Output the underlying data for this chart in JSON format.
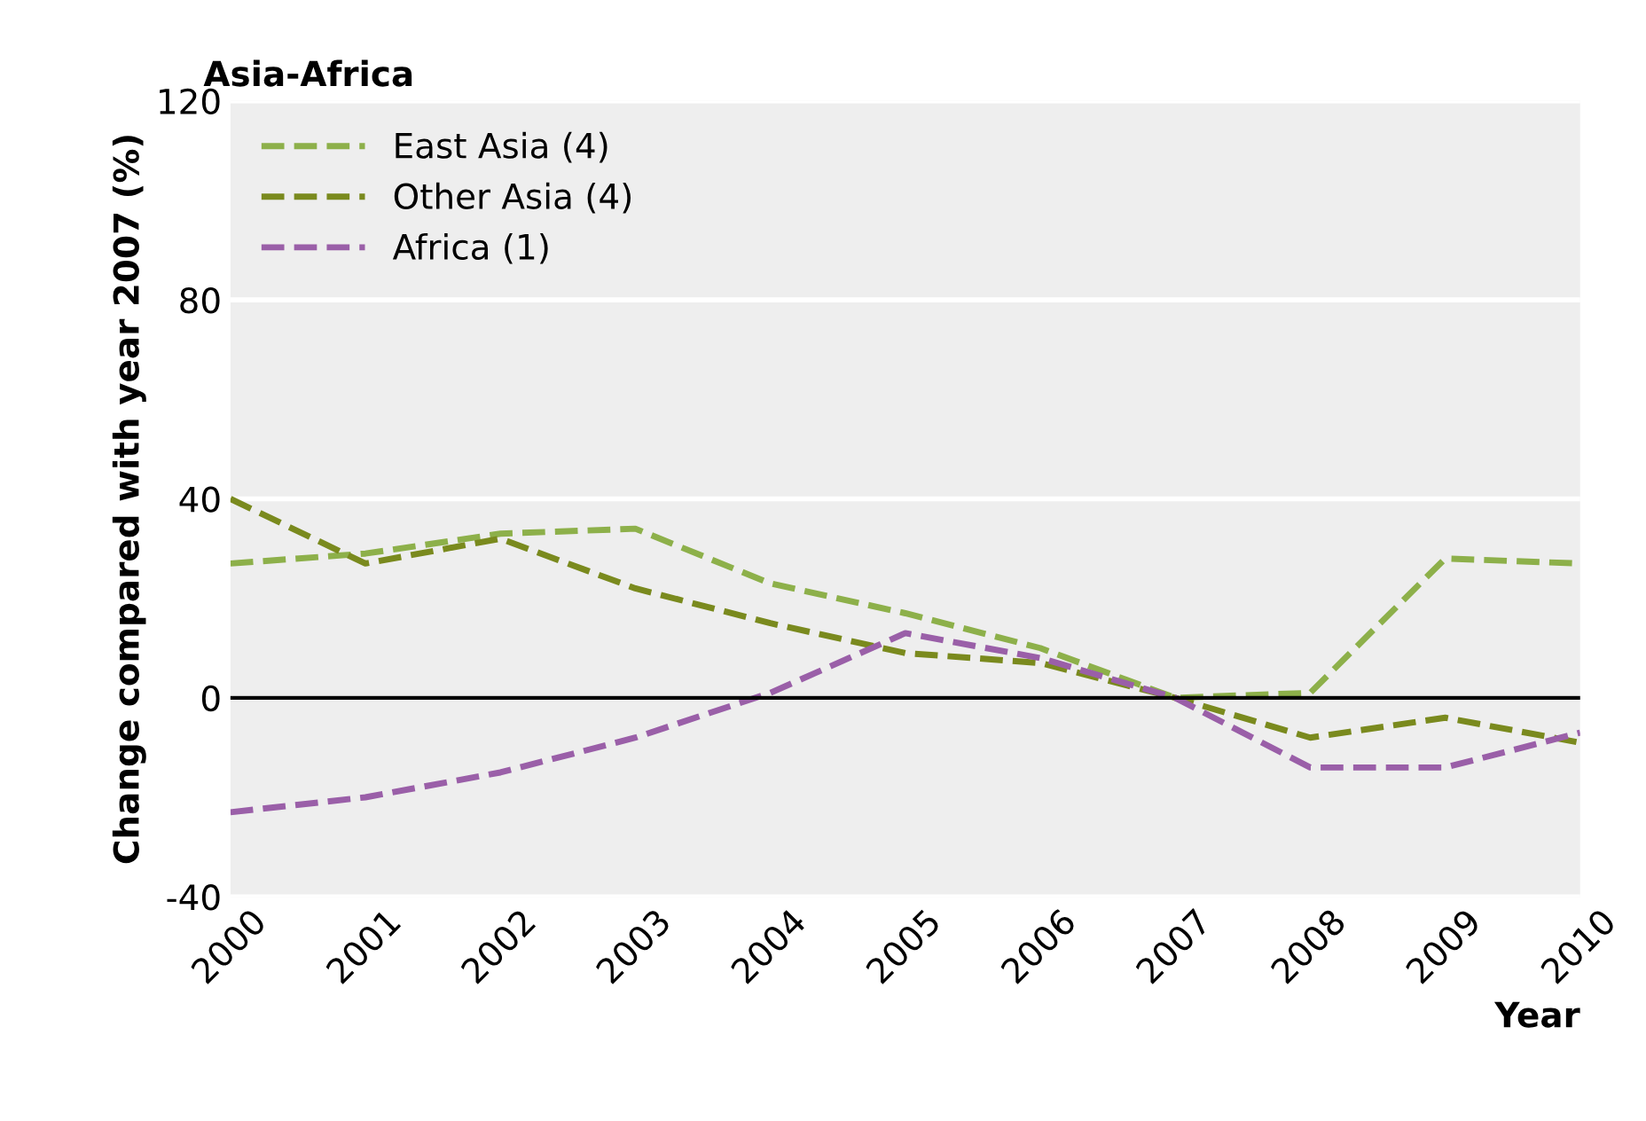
{
  "chart_data": {
    "type": "line",
    "title": "Asia-Africa",
    "xlabel": "Year",
    "ylabel": "Change compared with year 2007 (%)",
    "x": [
      2000,
      2001,
      2002,
      2003,
      2004,
      2005,
      2006,
      2007,
      2008,
      2009,
      2010
    ],
    "series": [
      {
        "name": "East Asia (4)",
        "color": "#8db04a",
        "line_style": "dashed",
        "values": [
          27,
          29,
          33,
          34,
          23,
          17,
          10,
          0,
          1,
          28,
          27
        ]
      },
      {
        "name": "Other Asia (4)",
        "color": "#7a8a1e",
        "line_style": "dashed",
        "values": [
          40,
          27,
          32,
          22,
          15,
          9,
          7,
          0,
          -8,
          -4,
          -9
        ]
      },
      {
        "name": "Africa (1)",
        "color": "#9a5fa8",
        "line_style": "dashed",
        "values": [
          -23,
          -20,
          -15,
          -8,
          1,
          13,
          8,
          0,
          -14,
          -14,
          -7
        ]
      }
    ],
    "xlim": [
      2000,
      2010
    ],
    "xticks": [
      2000,
      2001,
      2002,
      2003,
      2004,
      2005,
      2006,
      2007,
      2008,
      2009,
      2010
    ],
    "ylim": [
      -40,
      120
    ],
    "yticks": [
      -40,
      0,
      40,
      80,
      120
    ],
    "ref_lines": [
      {
        "axis": "y",
        "value": 0,
        "color": "#000000",
        "line_style": "solid"
      }
    ],
    "grid": "y",
    "legend": "top left",
    "marker": "none"
  }
}
